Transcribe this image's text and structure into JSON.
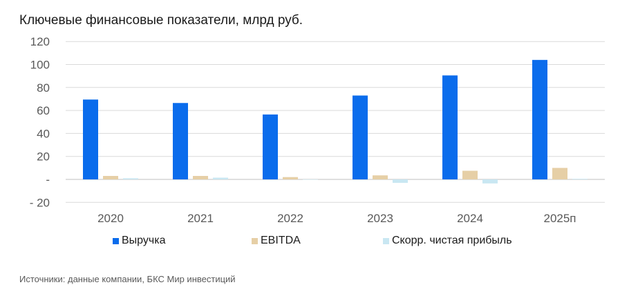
{
  "chart_data": {
    "type": "bar",
    "title": "Ключевые финансовые показатели, млрд руб.",
    "categories": [
      "2020",
      "2021",
      "2022",
      "2023",
      "2024",
      "2025п"
    ],
    "series": [
      {
        "name": "Выручка",
        "color": "#0a6cec",
        "values": [
          69.5,
          66.5,
          56.5,
          73,
          90.5,
          104
        ]
      },
      {
        "name": "EBITDA",
        "color": "#e6cfa6",
        "values": [
          3,
          3,
          2,
          3.5,
          7.5,
          10
        ]
      },
      {
        "name": "Скорр. чистая прибыль",
        "color": "#c9e7f2",
        "values": [
          1,
          1.5,
          0,
          -3,
          -3.5,
          0.5
        ]
      }
    ],
    "ylim": [
      -20,
      120
    ],
    "yticks": [
      {
        "value": 120,
        "label": "120"
      },
      {
        "value": 100,
        "label": "100"
      },
      {
        "value": 80,
        "label": "80"
      },
      {
        "value": 60,
        "label": "60"
      },
      {
        "value": 40,
        "label": "40"
      },
      {
        "value": 20,
        "label": "20"
      },
      {
        "value": 0,
        "label": "-"
      },
      {
        "value": -20,
        "label": "- 20"
      }
    ],
    "grid": true,
    "legend": "bottom",
    "source": "Источники: данные компании, БКС Мир инвестиций"
  }
}
